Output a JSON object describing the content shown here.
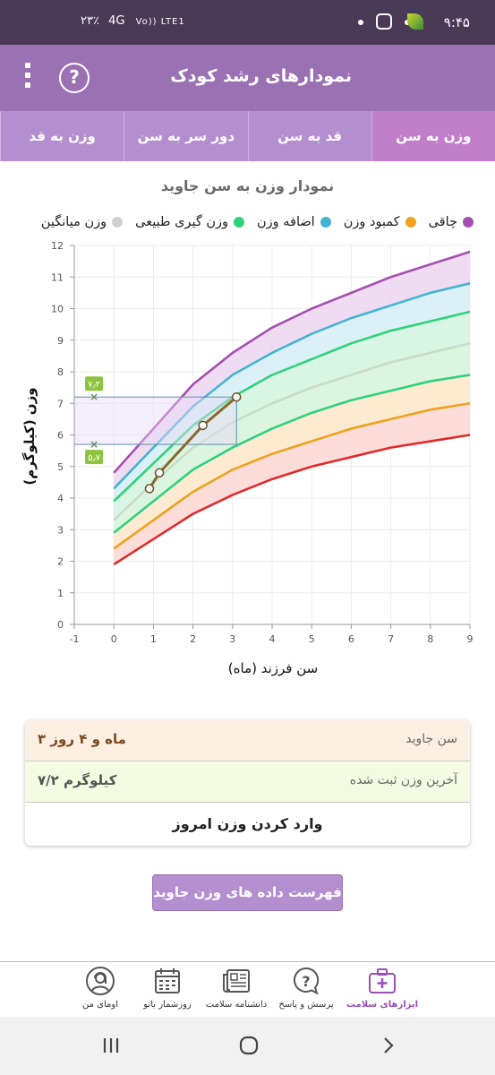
{
  "status": {
    "time": "۹:۴۵",
    "battery": "۲۳٪",
    "network": "4G",
    "lte": "Vo)) LTE1"
  },
  "appbar": {
    "title": "نمودارهای رشد کودک",
    "help_symbol": "?",
    "menu_icon": "more-vert-icon"
  },
  "tabs": [
    {
      "label": "وزن به سن",
      "active": true
    },
    {
      "label": "قد به سن",
      "active": false
    },
    {
      "label": "دور سر به سن",
      "active": false
    },
    {
      "label": "وزن به قد",
      "active": false
    }
  ],
  "chart_title": "نمودار وزن به سن جاوید",
  "legend": [
    {
      "label": "چاقی",
      "color": "#a64fb3"
    },
    {
      "label": "کمبود وزن",
      "color": "#f0a21d"
    },
    {
      "label": "اضافه وزن",
      "color": "#45b3d4"
    },
    {
      "label": "وزن گیری طبیعی",
      "color": "#2fd27a"
    },
    {
      "label": "وزن میانگین",
      "color": "#d0d0d0"
    }
  ],
  "chart_data": {
    "type": "line",
    "xlabel": "سن فرزند (ماه)",
    "ylabel": "وزن (کیلوگرم)",
    "xlim": [
      -1,
      9
    ],
    "ylim": [
      0,
      12
    ],
    "xticks": [
      -1,
      0,
      1,
      2,
      3,
      4,
      5,
      6,
      7,
      8,
      9
    ],
    "yticks": [
      0,
      1,
      2,
      3,
      4,
      5,
      6,
      7,
      8,
      9,
      10,
      11,
      12
    ],
    "x": [
      0,
      1,
      2,
      3,
      4,
      5,
      6,
      7,
      8,
      9
    ],
    "grid": true,
    "series": [
      {
        "name": "چاقی",
        "color": "#a64fb3",
        "values": [
          4.8,
          6.2,
          7.6,
          8.6,
          9.4,
          10.0,
          10.5,
          11.0,
          11.4,
          11.8
        ]
      },
      {
        "name": "اضافه وزن",
        "color": "#45b3d4",
        "values": [
          4.3,
          5.6,
          6.9,
          7.9,
          8.6,
          9.2,
          9.7,
          10.1,
          10.5,
          10.8
        ]
      },
      {
        "values": [
          3.9,
          5.1,
          6.3,
          7.2,
          7.9,
          8.4,
          8.9,
          9.3,
          9.6,
          9.9
        ],
        "color": "#2fd27a"
      },
      {
        "name": "وزن میانگین",
        "color": "#c8dcc8",
        "values": [
          3.3,
          4.5,
          5.6,
          6.4,
          7.0,
          7.5,
          7.9,
          8.3,
          8.6,
          8.9
        ]
      },
      {
        "values": [
          2.9,
          3.9,
          4.9,
          5.6,
          6.2,
          6.7,
          7.1,
          7.4,
          7.7,
          7.9
        ],
        "color": "#2fd27a"
      },
      {
        "name": "کمبود وزن",
        "color": "#f0a21d",
        "values": [
          2.4,
          3.3,
          4.2,
          4.9,
          5.4,
          5.8,
          6.2,
          6.5,
          6.8,
          7.0
        ]
      },
      {
        "values": [
          1.9,
          2.7,
          3.5,
          4.1,
          4.6,
          5.0,
          5.3,
          5.6,
          5.8,
          6.0
        ],
        "color": "#e02a2a"
      }
    ],
    "child_points": {
      "x": [
        0.9,
        1.15,
        2.25,
        3.1
      ],
      "y": [
        4.3,
        4.8,
        6.3,
        7.2
      ],
      "color": "#8a6a2a"
    },
    "range_box": {
      "y_min": 5.7,
      "y_max": 7.2,
      "x_max": 3.1
    },
    "range_labels": {
      "max": "۷٫۲",
      "min": "۵٫۷"
    }
  },
  "info": {
    "age_label": "سن جاوید",
    "age_value": "۳ ماه و ۴ روز",
    "weight_label": "آخرین وزن ثبت شده",
    "weight_value": "۷/۲ کیلوگرم",
    "enter_button": "وارد کردن وزن امروز"
  },
  "list_button": "فهرست داده های وزن جاوید",
  "bottom_nav": [
    {
      "label": "ابزارهای سلامت",
      "icon": "first-aid-kit-icon",
      "active": true
    },
    {
      "label": "پرسش و پاسخ",
      "icon": "question-bubble-icon",
      "active": false
    },
    {
      "label": "دانشنامه سلامت",
      "icon": "newspaper-icon",
      "active": false
    },
    {
      "label": "روزشمار بانو",
      "icon": "calendar-icon",
      "active": false
    },
    {
      "label": "اومای من",
      "icon": "profile-woman-icon",
      "active": false
    }
  ]
}
